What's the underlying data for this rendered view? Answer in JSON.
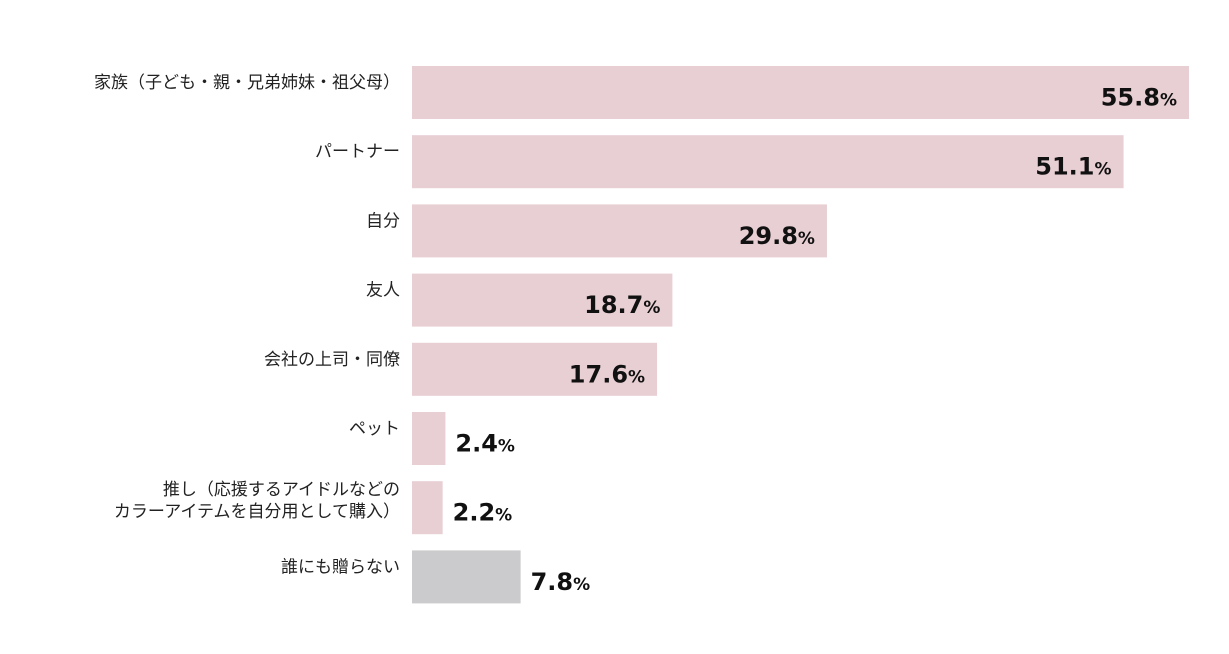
{
  "chart_data": {
    "type": "bar",
    "orientation": "horizontal",
    "categories": [
      [
        "家族（子ども・親・兄弟姉妹・祖父母）"
      ],
      [
        "パートナー"
      ],
      [
        "自分"
      ],
      [
        "友人"
      ],
      [
        "会社の上司・同僚"
      ],
      [
        "ペット"
      ],
      [
        "推し（応援するアイドルなどの",
        "カラーアイテムを自分用として購入）"
      ],
      [
        "誰にも贈らない"
      ]
    ],
    "values": [
      55.8,
      51.1,
      29.8,
      18.7,
      17.6,
      2.4,
      2.2,
      7.8
    ],
    "value_labels": [
      "55.8",
      "51.1",
      "29.8",
      "18.7",
      "17.6",
      "2.4",
      "2.2",
      "7.8"
    ],
    "unit": "%",
    "bar_colors": [
      "#e8cfd3",
      "#e8cfd3",
      "#e8cfd3",
      "#e8cfd3",
      "#e8cfd3",
      "#e8cfd3",
      "#e8cfd3",
      "#cbcbcd"
    ],
    "xlim": [
      0,
      55.8
    ],
    "title": "",
    "xlabel": "",
    "ylabel": "",
    "grid": false,
    "legend": "none"
  }
}
